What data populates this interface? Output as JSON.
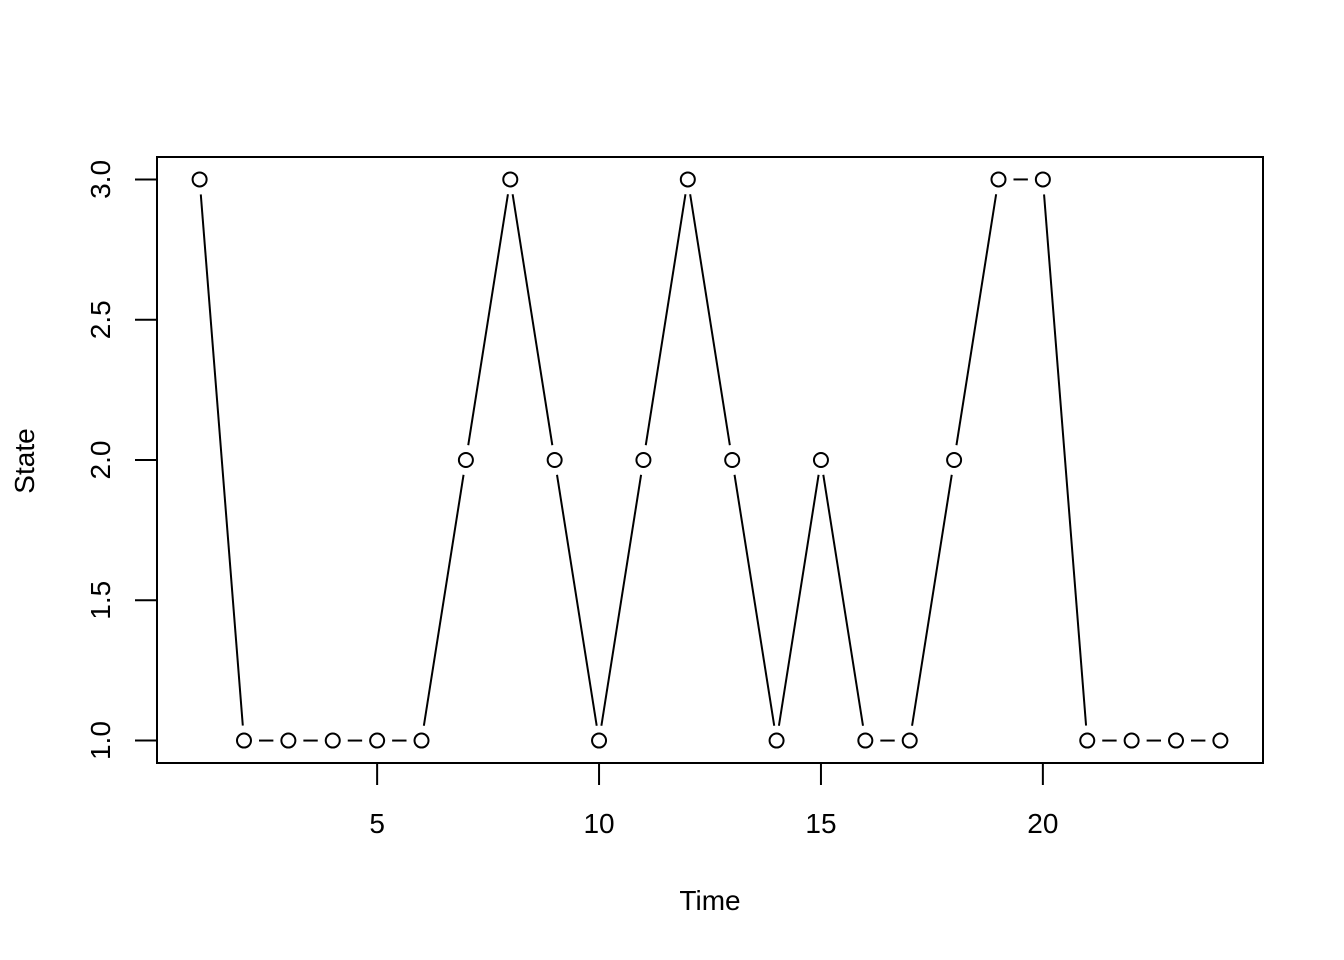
{
  "chart_data": {
    "type": "line",
    "xlabel": "Time",
    "ylabel": "State",
    "xlim": [
      0.04,
      24.96
    ],
    "ylim": [
      0.92,
      3.08
    ],
    "xticks": [
      "5",
      "10",
      "15",
      "20"
    ],
    "yticks": [
      "1.0",
      "1.5",
      "2.0",
      "2.5",
      "3.0"
    ],
    "grid": false,
    "legend": "none",
    "marker": "open-circle",
    "line_style": "type-b (lines with gaps at points)",
    "colors": {
      "line": "#000000",
      "marker_fill": "#ffffff"
    },
    "x": [
      1,
      2,
      3,
      4,
      5,
      6,
      7,
      8,
      9,
      10,
      11,
      12,
      13,
      14,
      15,
      16,
      17,
      18,
      19,
      20,
      21,
      22,
      23,
      24
    ],
    "values": [
      3,
      1,
      1,
      1,
      1,
      1,
      2,
      3,
      2,
      1,
      2,
      3,
      2,
      1,
      2,
      1,
      1,
      2,
      3,
      3,
      1,
      1,
      1,
      1
    ]
  }
}
